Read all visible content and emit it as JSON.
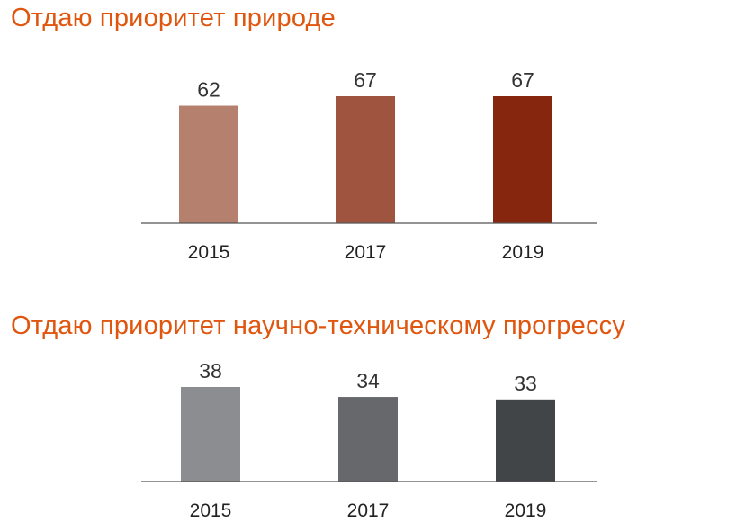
{
  "chart_data": [
    {
      "type": "bar",
      "title": "Отдаю приоритет природе",
      "categories": [
        "2015",
        "2017",
        "2019"
      ],
      "values": [
        62,
        67,
        67
      ],
      "data_labels": [
        "62",
        "67",
        "67"
      ],
      "colors": [
        "#b5806d",
        "#9f5440",
        "#87260f"
      ],
      "xlabel": "",
      "ylabel": "",
      "ylim": [
        0,
        67
      ],
      "grid": false,
      "legend": "none"
    },
    {
      "type": "bar",
      "title": "Отдаю приоритет научно-техническому прогрессу",
      "categories": [
        "2015",
        "2017",
        "2019"
      ],
      "values": [
        38,
        34,
        33
      ],
      "data_labels": [
        "38",
        "34",
        "33"
      ],
      "colors": [
        "#8c8d90",
        "#66686b",
        "#424548"
      ],
      "xlabel": "",
      "ylabel": "",
      "ylim": [
        0,
        38
      ],
      "grid": false,
      "legend": "none"
    }
  ]
}
